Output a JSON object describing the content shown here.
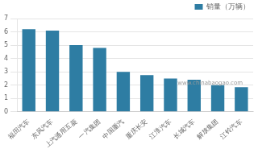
{
  "chart_data": {
    "type": "bar",
    "categories": [
      "福田汽车",
      "东风汽车",
      "上汽通用五菱",
      "一汽集团",
      "中国重汽",
      "重庆长安",
      "江淮汽车",
      "长城汽车",
      "解放集团",
      "江铃汽车"
    ],
    "series": [
      {
        "name": "销量（万辆）",
        "color": "#2e7da3",
        "values": [
          6.2,
          6.1,
          5.0,
          4.8,
          3.0,
          2.75,
          2.5,
          2.4,
          2.0,
          1.85
        ]
      }
    ],
    "ylim": [
      0,
      7
    ],
    "yticks": [
      0,
      1,
      2,
      3,
      4,
      5,
      6,
      7
    ],
    "grid": true,
    "legend": "upper right",
    "annotation": "www.chinabaogao.com"
  }
}
